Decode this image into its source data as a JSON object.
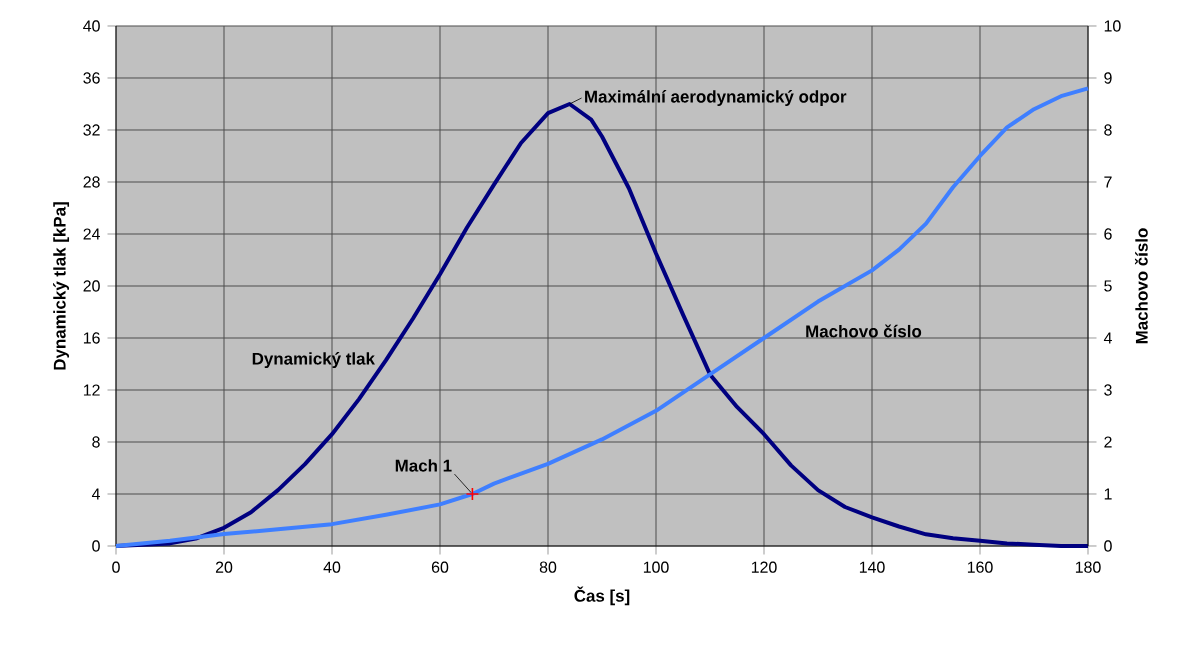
{
  "chart_data": {
    "type": "line",
    "xlabel": "Čas [s]",
    "ylabel": "Dynamický tlak [kPa]",
    "y2label": "Machovo číslo",
    "series": [
      {
        "name": "Dynamický tlak",
        "color": "#000080",
        "x": [
          0,
          5,
          10,
          15,
          20,
          25,
          30,
          35,
          40,
          45,
          50,
          55,
          60,
          65,
          70,
          75,
          80,
          84,
          88,
          90,
          95,
          100,
          105,
          110,
          115,
          120,
          125,
          130,
          135,
          140,
          145,
          150,
          155,
          160,
          165,
          170,
          175,
          180
        ],
        "values": [
          0,
          0.1,
          0.2,
          0.6,
          1.4,
          2.6,
          4.3,
          6.3,
          8.6,
          11.3,
          14.3,
          17.5,
          20.9,
          24.5,
          27.8,
          31,
          33.3,
          34,
          32.8,
          31.5,
          27.5,
          22.5,
          17.8,
          13.2,
          10.7,
          8.6,
          6.2,
          4.3,
          3,
          2.2,
          1.5,
          0.9,
          0.6,
          0.4,
          0.2,
          0.1,
          0,
          0
        ]
      },
      {
        "name": "Machovo číslo",
        "color": "#3f7fff",
        "axis": "y2",
        "x": [
          0,
          10,
          20,
          30,
          40,
          50,
          60,
          66,
          70,
          80,
          90,
          100,
          110,
          120,
          130,
          140,
          145,
          150,
          155,
          160,
          165,
          170,
          175,
          180
        ],
        "values": [
          0,
          0.1,
          0.23,
          0.32,
          0.42,
          0.6,
          0.8,
          1.0,
          1.2,
          1.58,
          2.05,
          2.6,
          3.3,
          4.0,
          4.7,
          5.3,
          5.7,
          6.2,
          6.9,
          7.5,
          8.05,
          8.4,
          8.65,
          8.8
        ]
      },
      {
        "type": "scatter",
        "color": "#ff0000",
        "axis": "y2",
        "marker": "cross",
        "x": [
          66
        ],
        "values": [
          1
        ]
      }
    ],
    "annotations": [
      {
        "text": "Maximální aerodynamický odpor",
        "x": 84,
        "y": 34
      },
      {
        "text": "Mach 1",
        "x": 66,
        "y": 4
      }
    ],
    "xlim": [
      0,
      180
    ],
    "xticks": [
      0,
      20,
      40,
      60,
      80,
      100,
      120,
      140,
      160,
      180
    ],
    "ylim": [
      0,
      40
    ],
    "yticks": [
      0,
      4,
      8,
      12,
      16,
      20,
      24,
      28,
      32,
      36,
      40
    ],
    "y2lim": [
      0,
      10
    ],
    "y2ticks": [
      0,
      1,
      2,
      3,
      4,
      5,
      6,
      7,
      8,
      9,
      10
    ],
    "grid": true,
    "marker": "none",
    "line_style": "solid"
  }
}
